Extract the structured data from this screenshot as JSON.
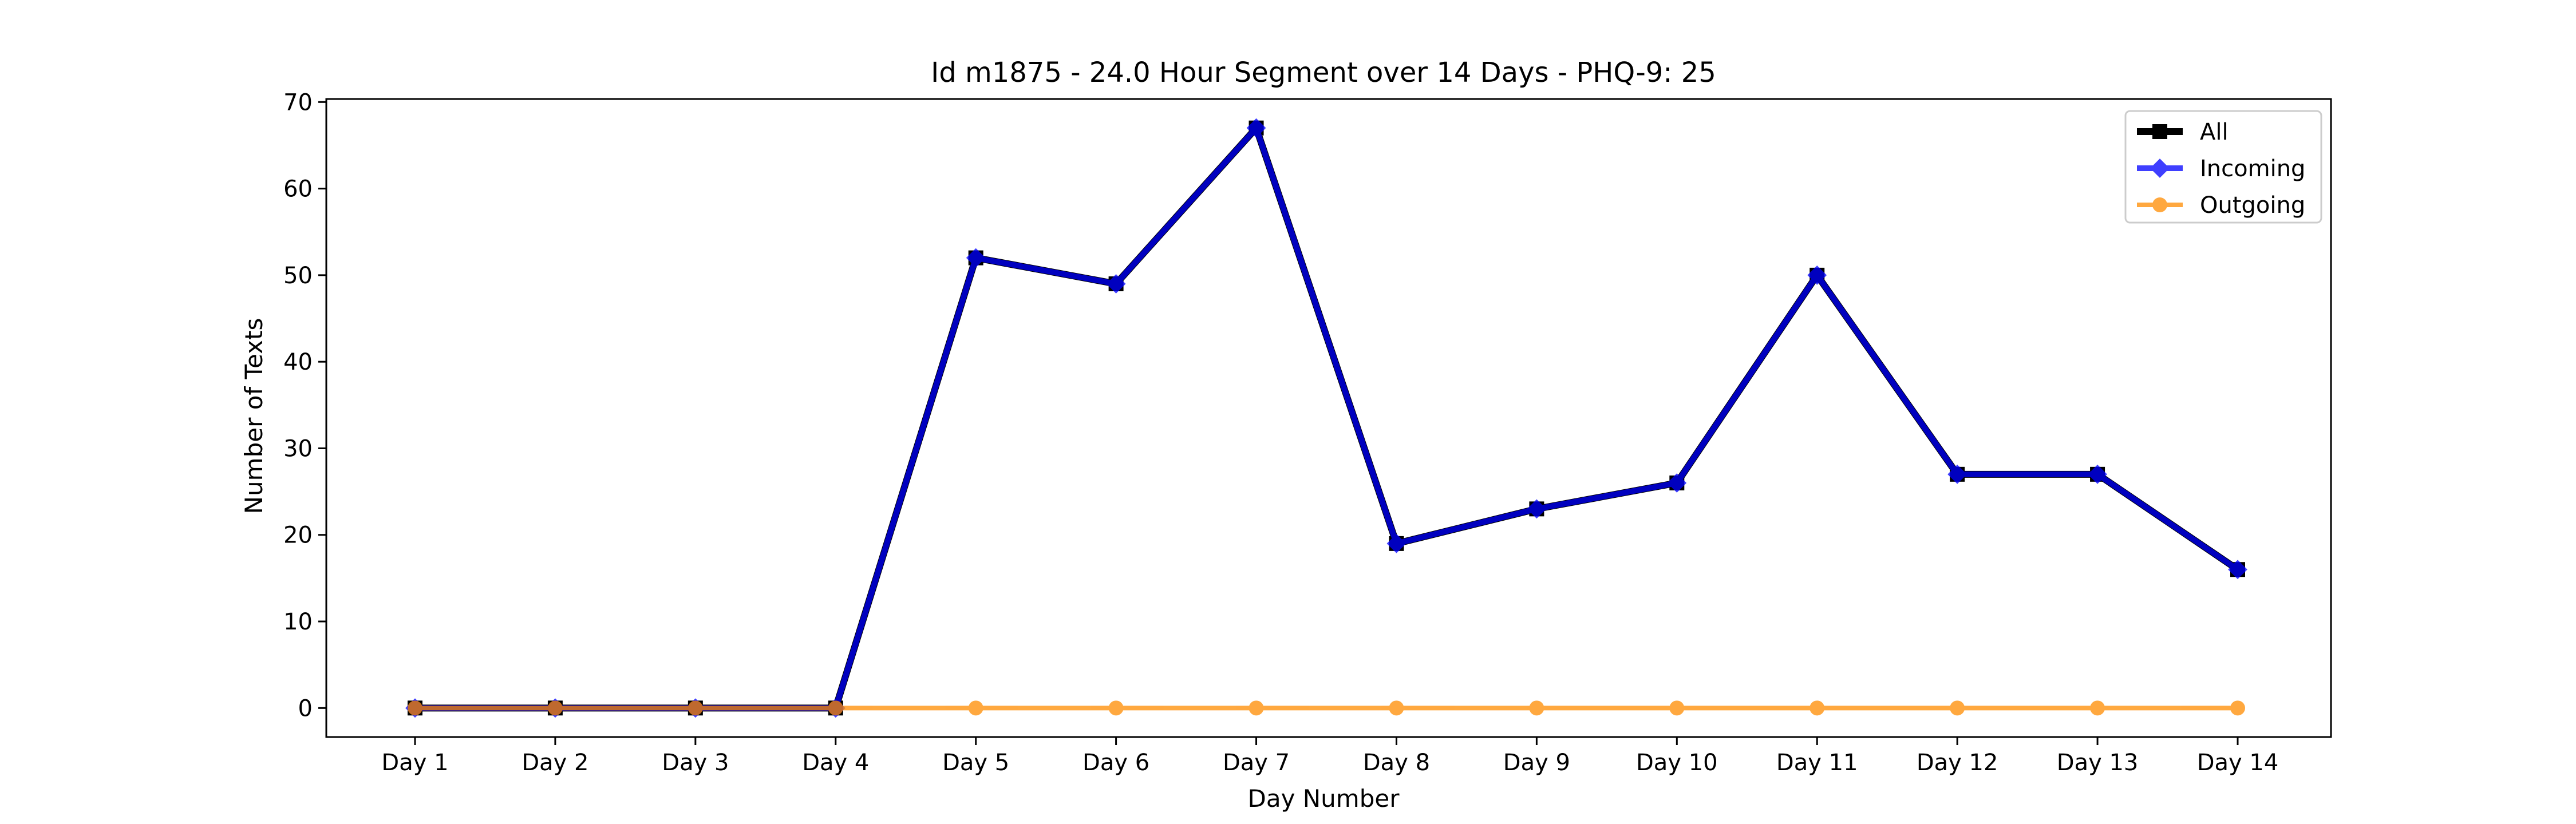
{
  "chart_data": {
    "type": "line",
    "title": "Id m1875 - 24.0 Hour Segment over 14 Days - PHQ-9: 25",
    "xlabel": "Day Number",
    "ylabel": "Number of Texts",
    "categories": [
      "Day 1",
      "Day 2",
      "Day 3",
      "Day 4",
      "Day 5",
      "Day 6",
      "Day 7",
      "Day 8",
      "Day 9",
      "Day 10",
      "Day 11",
      "Day 12",
      "Day 13",
      "Day 14"
    ],
    "ylim": [
      -3.35,
      70.35
    ],
    "yticks": [
      0,
      10,
      20,
      30,
      40,
      50,
      60,
      70
    ],
    "grid": false,
    "legend_position": "top-right",
    "series": [
      {
        "name": "All",
        "color": "#000000",
        "marker": "square",
        "values": [
          0,
          0,
          0,
          0,
          52,
          49,
          67,
          19,
          23,
          26,
          50,
          27,
          27,
          16
        ]
      },
      {
        "name": "Incoming",
        "color": "#0000ff",
        "marker": "diamond",
        "values": [
          0,
          0,
          0,
          0,
          52,
          49,
          67,
          19,
          23,
          26,
          50,
          27,
          27,
          16
        ]
      },
      {
        "name": "Outgoing",
        "color": "#ff8c00",
        "marker": "circle",
        "values": [
          0,
          0,
          0,
          0,
          0,
          0,
          0,
          0,
          0,
          0,
          0,
          0,
          0,
          0
        ]
      }
    ]
  }
}
